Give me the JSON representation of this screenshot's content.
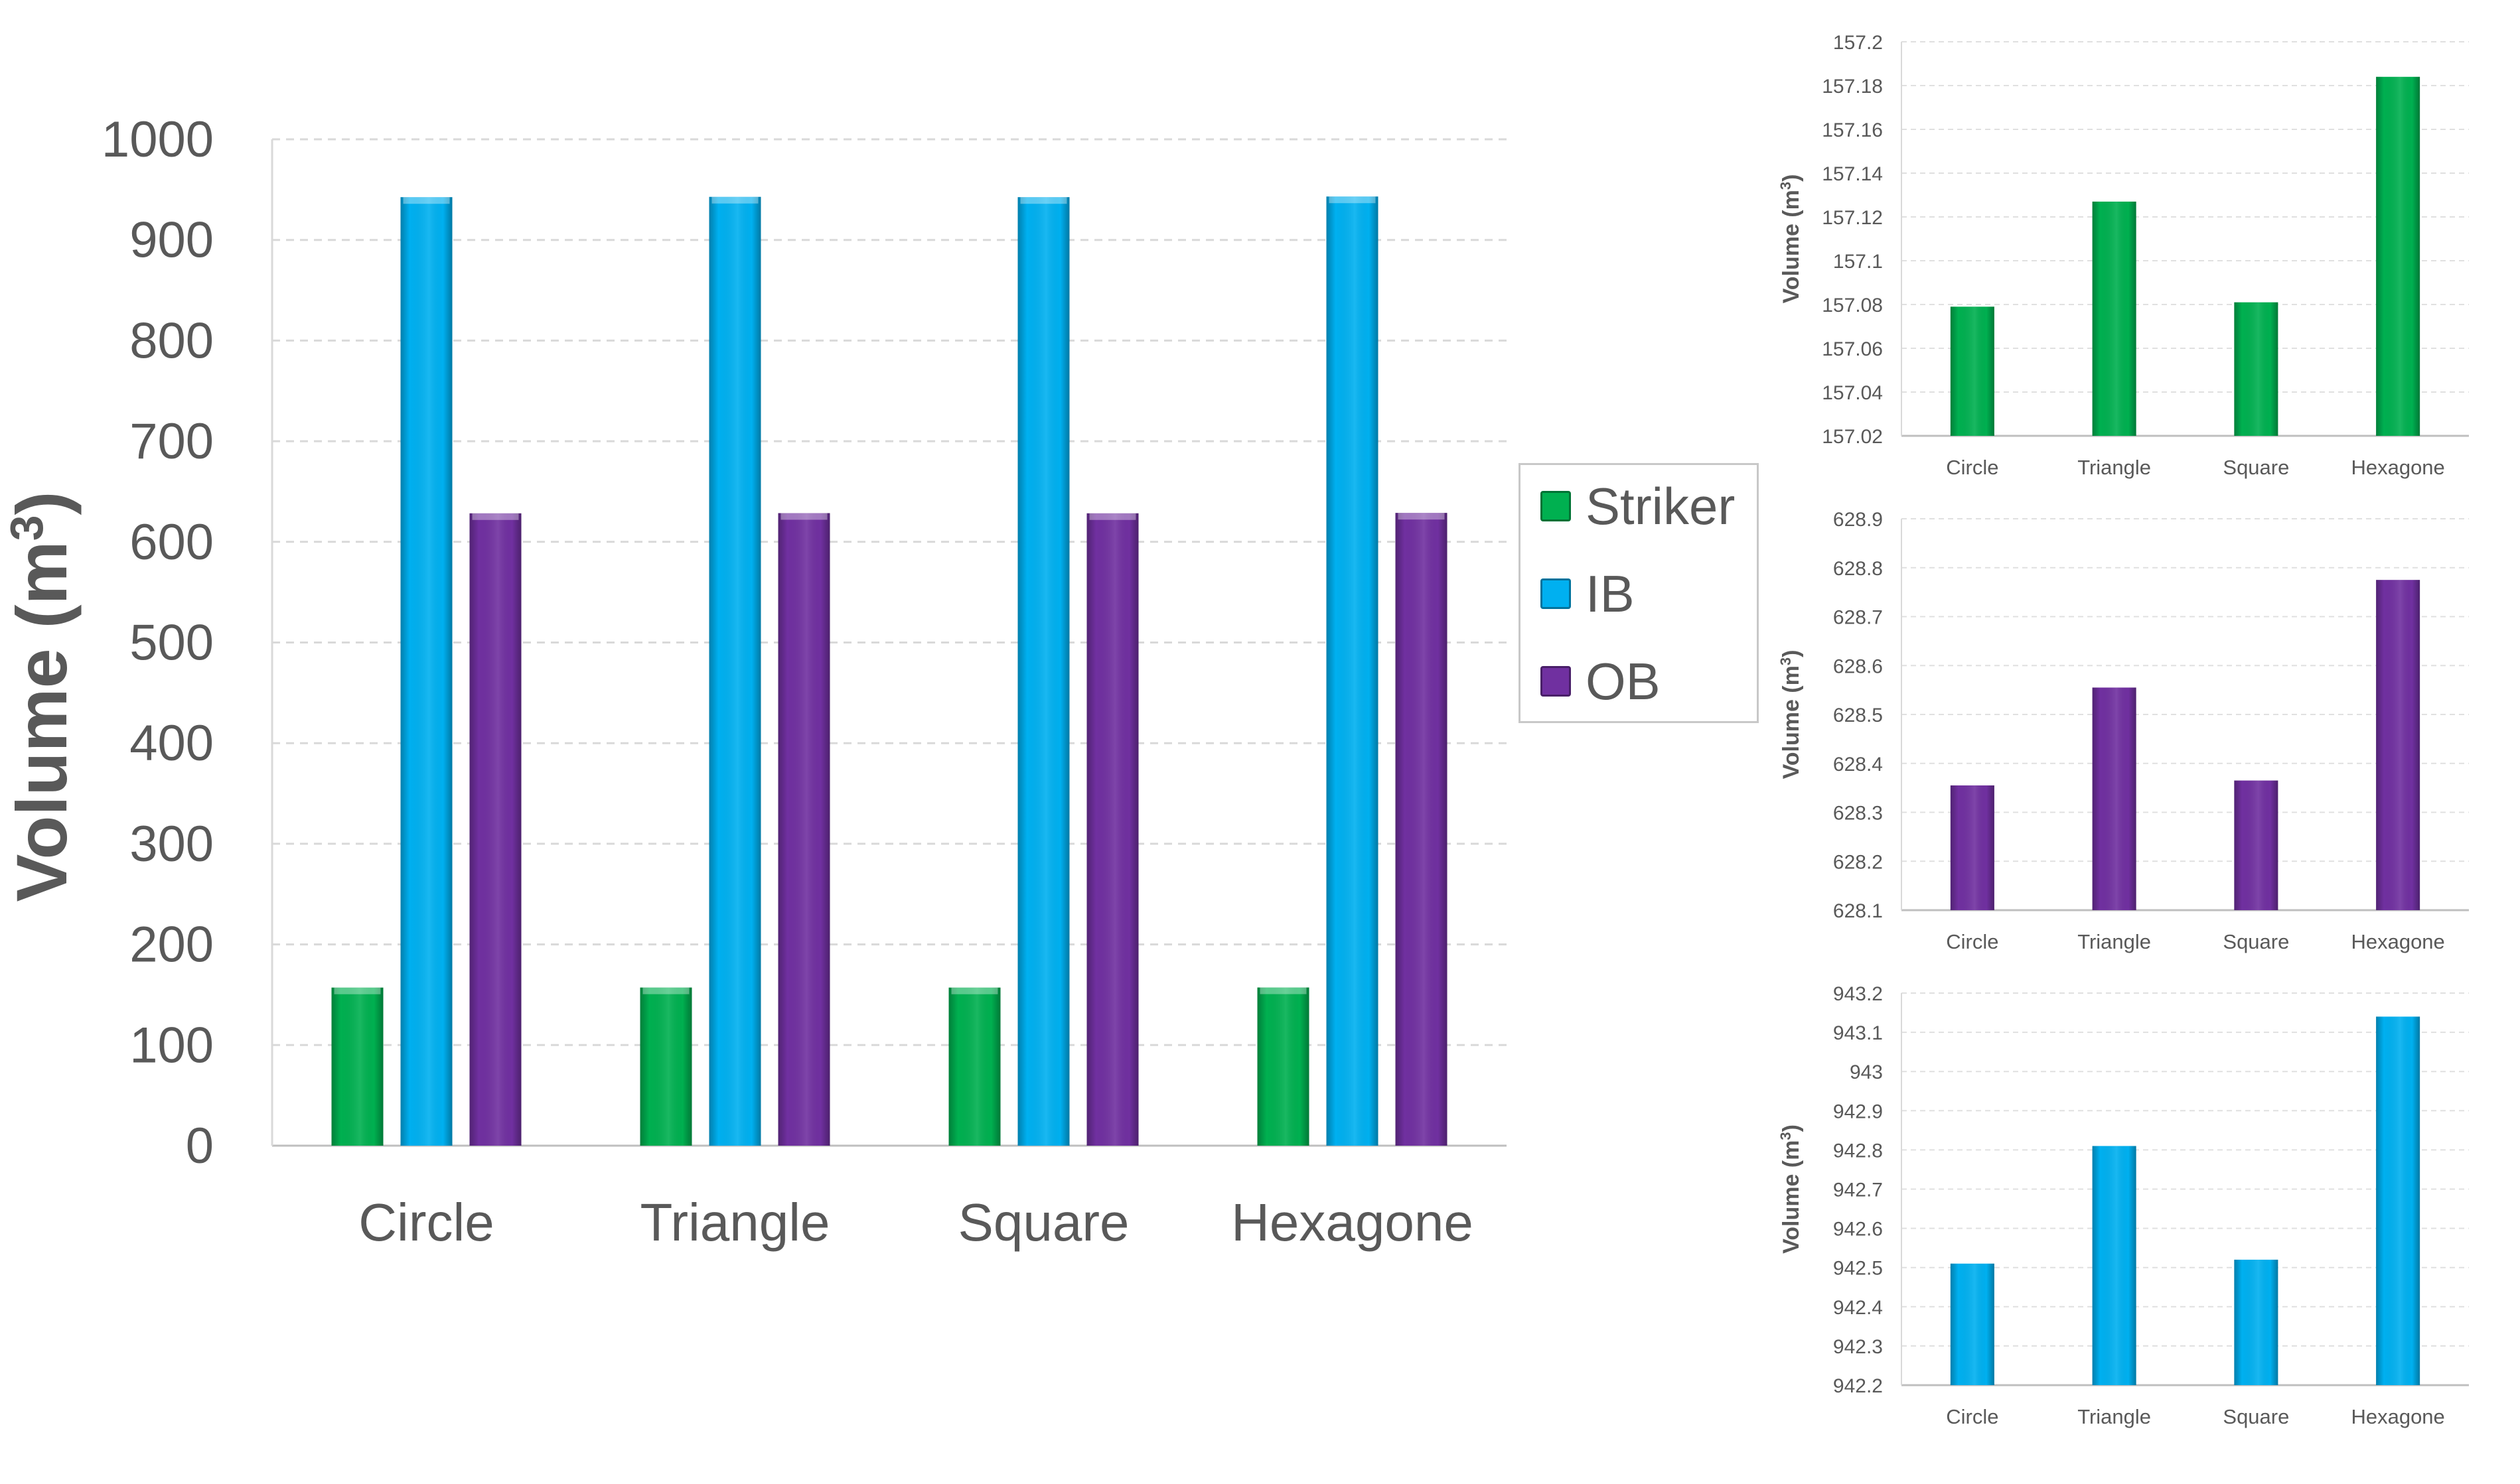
{
  "colors": {
    "striker": "#00B050",
    "ib": "#00B0F0",
    "ob": "#7030A0",
    "axis_text": "#595959",
    "grid": "#d9d9d9"
  },
  "main": {
    "ylabel_prefix": "Volume (m",
    "ylabel_sup": "3",
    "ylabel_suffix": ")",
    "legend": [
      {
        "key": "striker",
        "label": "Striker"
      },
      {
        "key": "ib",
        "label": "IB"
      },
      {
        "key": "ob",
        "label": "OB"
      }
    ]
  },
  "chart_data": [
    {
      "type": "bar",
      "categories": [
        "Circle",
        "Triangle",
        "Square",
        "Hexagone"
      ],
      "ylim": [
        0,
        1000
      ],
      "yticks": [
        0,
        100,
        200,
        300,
        400,
        500,
        600,
        700,
        800,
        900,
        1000
      ],
      "ylabel": "Volume (m3)",
      "legend_position": "right",
      "grid": true,
      "series": [
        {
          "name": "Striker",
          "color": "#00B050",
          "values": [
            157.08,
            157.13,
            157.08,
            157.18
          ]
        },
        {
          "name": "IB",
          "color": "#00B0F0",
          "values": [
            942.51,
            942.81,
            942.52,
            943.14
          ]
        },
        {
          "name": "OB",
          "color": "#7030A0",
          "values": [
            628.35,
            628.56,
            628.36,
            628.77
          ]
        }
      ]
    },
    {
      "type": "bar",
      "categories": [
        "Circle",
        "Triangle",
        "Square",
        "Hexagone"
      ],
      "ylim": [
        157.02,
        157.2
      ],
      "yticks": [
        "157.02",
        "157.04",
        "157.06",
        "157.08",
        "157.1",
        "157.12",
        "157.14",
        "157.16",
        "157.18",
        "157.2"
      ],
      "ylabel": "Volume (m3)",
      "grid": true,
      "color": "#00B050",
      "values": [
        157.079,
        157.127,
        157.081,
        157.184
      ]
    },
    {
      "type": "bar",
      "categories": [
        "Circle",
        "Triangle",
        "Square",
        "Hexagone"
      ],
      "ylim": [
        628.1,
        628.9
      ],
      "yticks": [
        "628.1",
        "628.2",
        "628.3",
        "628.4",
        "628.5",
        "628.6",
        "628.7",
        "628.8",
        "628.9"
      ],
      "ylabel": "Volume (m3)",
      "grid": true,
      "color": "#7030A0",
      "values": [
        628.355,
        628.555,
        628.365,
        628.775
      ]
    },
    {
      "type": "bar",
      "categories": [
        "Circle",
        "Triangle",
        "Square",
        "Hexagone"
      ],
      "ylim": [
        942.2,
        943.2
      ],
      "yticks": [
        "942.2",
        "942.3",
        "942.4",
        "942.5",
        "942.6",
        "942.7",
        "942.8",
        "942.9",
        "943",
        "943.1",
        "943.2"
      ],
      "ylabel": "Volume (m3)",
      "grid": true,
      "color": "#00B0F0",
      "values": [
        942.51,
        942.81,
        942.52,
        943.14
      ]
    }
  ]
}
